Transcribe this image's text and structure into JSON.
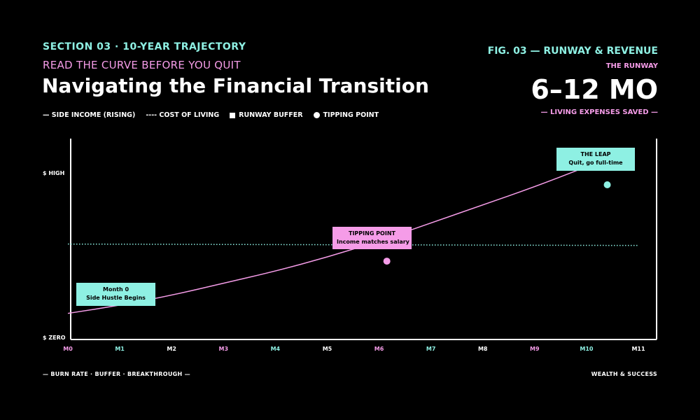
{
  "header": {
    "section": "SECTION 03 · 10-YEAR TRAJECTORY",
    "kicker": "READ THE CURVE BEFORE YOU QUIT",
    "title": "Navigating the Financial Transition"
  },
  "legend": {
    "side_income": "— SIDE INCOME (RISING)",
    "cost_of_living": "---- COST OF LIVING",
    "runway_buffer": "RUNWAY BUFFER",
    "tipping_point": "TIPPING POINT"
  },
  "figure": {
    "label": "FIG. 03 — RUNWAY & REVENUE",
    "runway_label": "THE RUNWAY",
    "runway_value": "6–12 MO",
    "runway_sub": "— LIVING EXPENSES SAVED —"
  },
  "footer": {
    "left": "— BURN RATE · BUFFER · BREAKTHROUGH —",
    "right": "WEALTH & SUCCESS"
  },
  "colors": {
    "teal": "#8ef0e3",
    "pink": "#f59ce8",
    "background": "#000000",
    "axis": "#ffffff"
  },
  "chart_data": {
    "type": "line",
    "x_categories": [
      "M0",
      "M1",
      "M2",
      "M3",
      "M4",
      "M5",
      "M6",
      "M7",
      "M8",
      "M9",
      "M10",
      "M11"
    ],
    "x_label_colors": [
      "pink",
      "teal",
      "white",
      "pink",
      "teal",
      "white",
      "pink",
      "teal",
      "white",
      "pink",
      "teal",
      "white"
    ],
    "y_ticks": [
      "$ HIGH",
      "$ ZERO"
    ],
    "xlim": [
      0,
      11
    ],
    "ylim": [
      0,
      100
    ],
    "y_high_value": 83,
    "series": [
      {
        "name": "SIDE INCOME (RISING)",
        "color": "#f59ce8",
        "x": [
          0,
          1,
          2,
          3,
          4,
          5,
          6,
          7,
          8,
          9,
          10,
          10.4
        ],
        "y": [
          13,
          17,
          22,
          28,
          34,
          41,
          49,
          58,
          67,
          76,
          86,
          90
        ]
      },
      {
        "name": "COST OF LIVING",
        "color": "#8ef0e3",
        "style": "dotted",
        "x": [
          0,
          11
        ],
        "y": [
          47.5,
          46.8
        ]
      }
    ],
    "points": [
      {
        "name": "tipping-point",
        "x": 6.15,
        "y": 39,
        "color": "#f59ce8"
      },
      {
        "name": "the-leap",
        "x": 10.4,
        "y": 77,
        "color": "#8ef0e3"
      }
    ],
    "annotations": [
      {
        "name": "month-0",
        "line1": "Month 0",
        "line2": "Side Hustle Begins",
        "color": "teal"
      },
      {
        "name": "tipping-point",
        "line1": "TIPPING POINT",
        "line2": "Income matches salary",
        "color": "pink"
      },
      {
        "name": "the-leap",
        "line1": "THE LEAP",
        "line2": "Quit, go full-time",
        "color": "teal"
      }
    ],
    "grid": false
  }
}
